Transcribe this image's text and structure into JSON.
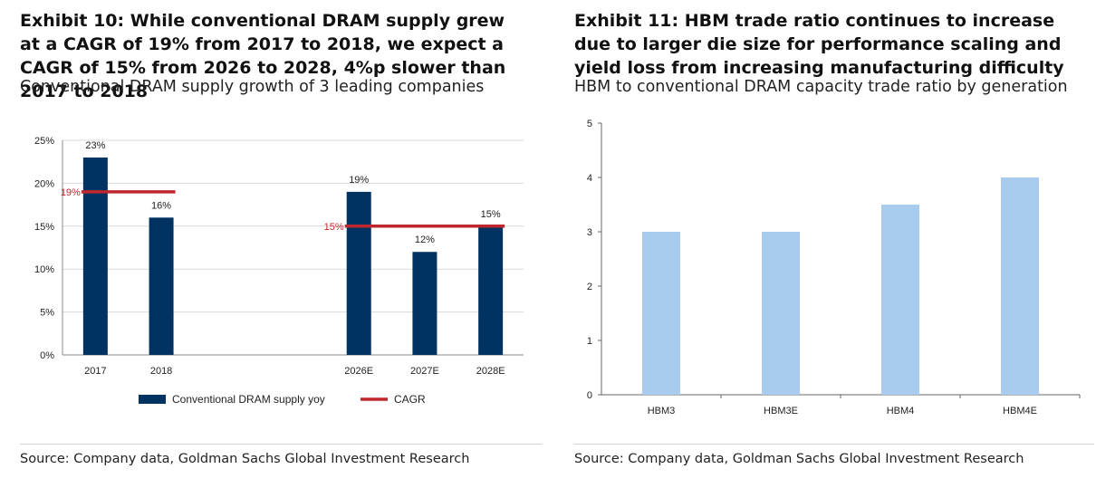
{
  "left": {
    "title": "Exhibit 10: While conventional DRAM supply grew at a CAGR of 19% from 2017 to 2018, we expect a CAGR of 15% from 2026 to 2028, 4%p slower than 2017 to 2018",
    "subtitle": "Conventional DRAM supply growth of 3 leading companies",
    "source": "Source: Company data, Goldman Sachs Global Investment Research"
  },
  "right": {
    "title": "Exhibit 11: HBM trade ratio continues to increase due to larger die size for performance scaling and yield loss from increasing manufacturing difficulty",
    "subtitle": "HBM to conventional DRAM capacity trade ratio by generation",
    "source": "Source: Company data, Goldman Sachs Global Investment Research"
  },
  "chart_data": [
    {
      "type": "bar",
      "categories": [
        "2017",
        "2018",
        "",
        "",
        "2026E",
        "2027E",
        "2028E"
      ],
      "series": [
        {
          "name": "Conventional DRAM supply yoy",
          "values": [
            23,
            16,
            null,
            null,
            19,
            12,
            15
          ],
          "labels": [
            "23%",
            "16%",
            "",
            "",
            "19%",
            "12%",
            "15%"
          ],
          "color": "#003361"
        },
        {
          "name": "CAGR",
          "type": "line",
          "segments": [
            {
              "from": "2017",
              "to": "2018",
              "value": 19,
              "label": "19%"
            },
            {
              "from": "2026E",
              "to": "2028E",
              "value": 15,
              "label": "15%"
            }
          ],
          "color": "#c0272d"
        }
      ],
      "ylim": [
        0,
        25
      ],
      "yticks": [
        0,
        5,
        10,
        15,
        20,
        25
      ],
      "ytick_labels": [
        "0%",
        "5%",
        "10%",
        "15%",
        "20%",
        "25%"
      ],
      "grid": true,
      "legend": "bottom"
    },
    {
      "type": "bar",
      "categories": [
        "HBM3",
        "HBM3E",
        "HBM4",
        "HBM4E"
      ],
      "series": [
        {
          "values": [
            3,
            3,
            3.5,
            4
          ],
          "color": "#a9cbee"
        }
      ],
      "ylim": [
        0,
        5
      ],
      "yticks": [
        0,
        1,
        2,
        3,
        4,
        5
      ],
      "grid": false
    }
  ]
}
